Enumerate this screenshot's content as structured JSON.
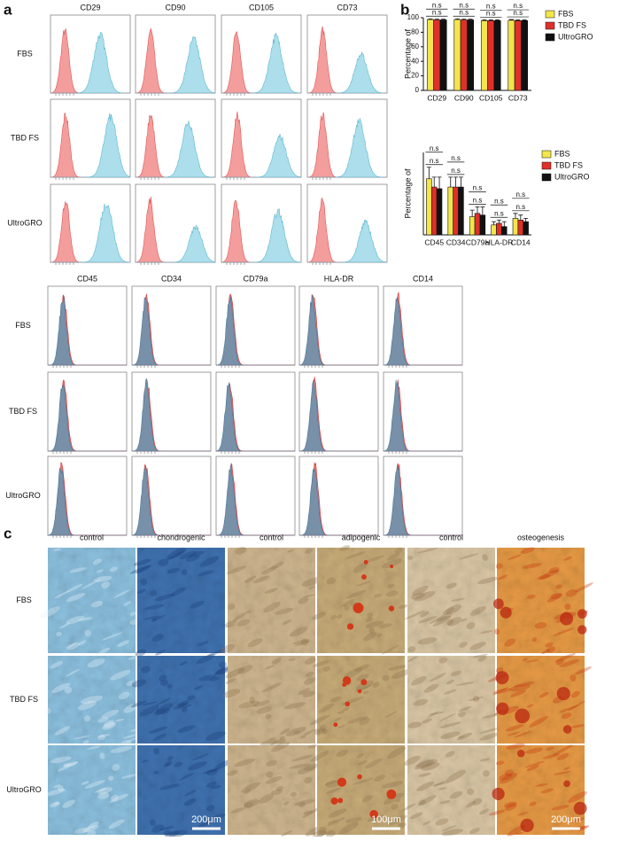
{
  "panel_labels": [
    "a",
    "b",
    "c"
  ],
  "panel_a": {
    "rows": [
      "FBS",
      "TBD FS",
      "UltroGRO"
    ],
    "positive_markers": [
      "CD29",
      "CD90",
      "CD105",
      "CD73"
    ],
    "negative_markers": [
      "CD45",
      "CD34",
      "CD79a",
      "HLA-DR",
      "CD14"
    ]
  },
  "chart_data": [
    {
      "type": "bar",
      "y_label": "Percentage of",
      "categories": [
        "CD29",
        "CD90",
        "CD105",
        "CD73"
      ],
      "series": [
        {
          "name": "FBS",
          "color": "#f2e64a",
          "values": [
            97.5,
            97.5,
            96,
            96.5
          ],
          "errors": [
            1,
            1,
            1,
            1
          ]
        },
        {
          "name": "TBD FS",
          "color": "#e0302a",
          "values": [
            97,
            97,
            96,
            96
          ],
          "errors": [
            1,
            1,
            1,
            1
          ]
        },
        {
          "name": "UltroGRO",
          "color": "#111111",
          "values": [
            97,
            97,
            96,
            96
          ],
          "errors": [
            1,
            1,
            1,
            1
          ]
        }
      ],
      "significance": [
        [
          "n.s",
          "n.s"
        ],
        [
          "n.s",
          "n.s"
        ],
        [
          "n.s",
          "n.s"
        ],
        [
          "n.s",
          "n.s"
        ]
      ],
      "ylim": [
        0,
        100
      ],
      "yticks": [
        0,
        20,
        40,
        60,
        80,
        100
      ]
    },
    {
      "type": "bar",
      "y_label": "Percentage of",
      "categories": [
        "CD45",
        "CD34",
        "CD79a",
        "HLA-DR",
        "CD14"
      ],
      "series": [
        {
          "name": "FBS",
          "color": "#f2e64a",
          "values": [
            1.7,
            1.45,
            0.55,
            0.3,
            0.5
          ],
          "errors": [
            0.35,
            0.3,
            0.2,
            0.1,
            0.15
          ]
        },
        {
          "name": "TBD FS",
          "color": "#e0302a",
          "values": [
            1.45,
            1.45,
            0.65,
            0.35,
            0.45
          ],
          "errors": [
            0.3,
            0.3,
            0.2,
            0.1,
            0.15
          ]
        },
        {
          "name": "UltroGRO",
          "color": "#111111",
          "values": [
            1.4,
            1.45,
            0.6,
            0.25,
            0.4
          ],
          "errors": [
            0.35,
            0.3,
            0.25,
            0.15,
            0.1
          ]
        }
      ],
      "significance": [
        [
          "n.s",
          "n.s"
        ],
        [
          "n.s",
          "n.s"
        ],
        [
          "n.s",
          "n.s"
        ],
        [
          "n.s",
          "n.s"
        ],
        [
          "n.s",
          "n.s"
        ]
      ],
      "ylim": [
        0,
        2.5
      ]
    }
  ],
  "panel_c": {
    "columns": [
      "control",
      "chondrogenic",
      "control",
      "adipogenic",
      "control",
      "osteogenesis"
    ],
    "rows": [
      "FBS",
      "TBD FS",
      "UltroGRO"
    ],
    "scale_bars": [
      "200μm",
      "100μm",
      "200μm"
    ]
  }
}
